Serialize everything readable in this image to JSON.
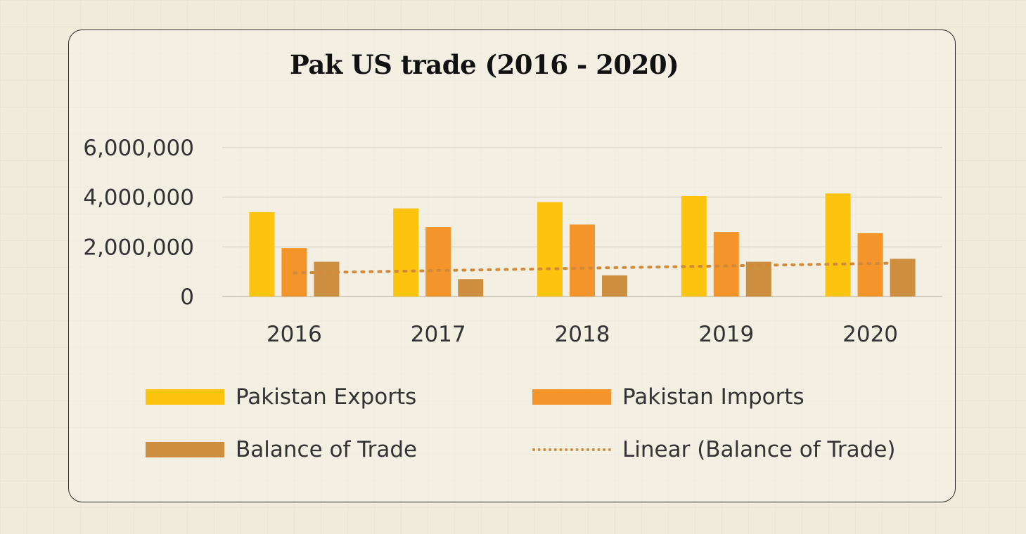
{
  "chart_data": {
    "type": "bar",
    "title": "Pak US trade (2016 - 2020)",
    "categories": [
      "2016",
      "2017",
      "2018",
      "2019",
      "2020"
    ],
    "ylim": [
      0,
      6000000
    ],
    "yticks": [
      {
        "value": 0,
        "label": "0"
      },
      {
        "value": 2000000,
        "label": "2,000,000"
      },
      {
        "value": 4000000,
        "label": "4,000,000"
      },
      {
        "value": 6000000,
        "label": "6,000,000"
      }
    ],
    "grid": true,
    "series": [
      {
        "name": "Pakistan Exports",
        "color": "#fcc30f",
        "values": [
          3400000,
          3550000,
          3800000,
          4050000,
          4150000
        ]
      },
      {
        "name": "Pakistan Imports",
        "color": "#f4952b",
        "values": [
          1950000,
          2800000,
          2900000,
          2600000,
          2550000
        ]
      },
      {
        "name": "Balance of Trade",
        "color": "#cd8f3f",
        "values": [
          1400000,
          700000,
          850000,
          1400000,
          1520000
        ]
      }
    ],
    "trendline": {
      "name": "Linear (Balance of Trade)",
      "color": "#d08a3a",
      "style": "dotted",
      "values": [
        950000,
        1050000,
        1150000,
        1250000,
        1350000
      ]
    },
    "legend": "bottom"
  }
}
